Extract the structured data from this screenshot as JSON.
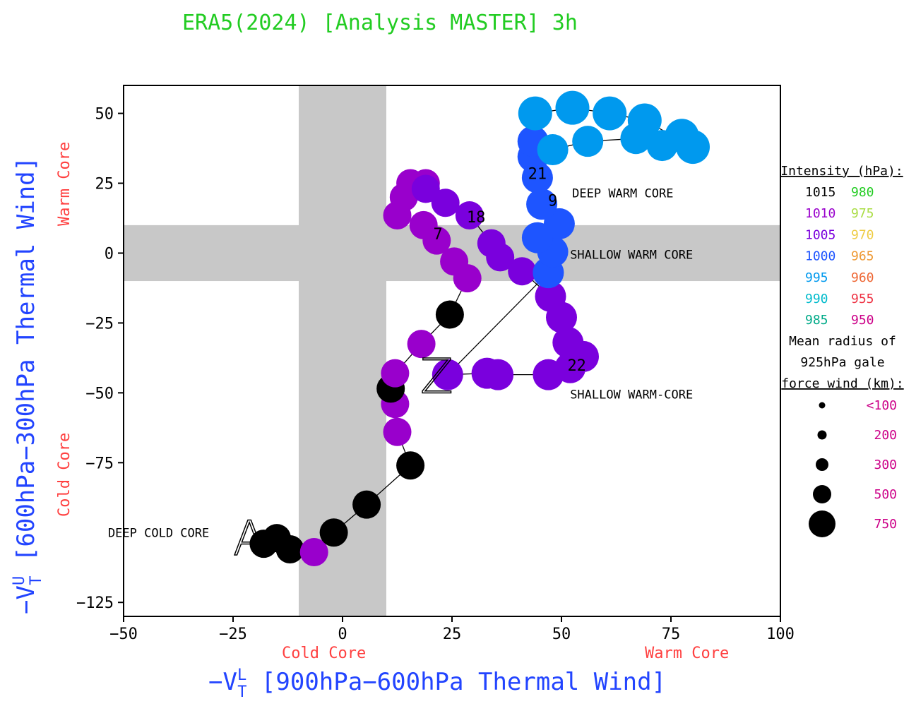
{
  "chart_data": {
    "type": "scatter",
    "title": "ERA5(2024) [Analysis MASTER] 3h",
    "xlabel": "−Vᵀᴸ [900hPa−600hPa Thermal Wind]",
    "ylabel": "−Vᵀᵁ [600hPa−300hPa Thermal Wind]",
    "xlim": [
      -50,
      100
    ],
    "ylim": [
      -130,
      60
    ],
    "xticks": [
      -50,
      -25,
      0,
      25,
      50,
      75,
      100
    ],
    "yticks": [
      50,
      25,
      0,
      -25,
      -50,
      -75,
      -125
    ],
    "xtick_labels": [
      "−50",
      "−25",
      "0",
      "25",
      "50",
      "75",
      "100"
    ],
    "ytick_labels": [
      "50",
      "25",
      "0",
      "−25",
      "−50",
      "−75",
      "−125"
    ],
    "core_labels": {
      "x_cold": "Cold Core",
      "x_warm": "Warm Core",
      "y_cold": "Cold Core",
      "y_warm": "Warm Core"
    },
    "shaded_bands": {
      "x_band": [
        -10,
        10
      ],
      "y_band": [
        -10,
        10
      ],
      "color": "#c8c8c8"
    },
    "region_labels": [
      {
        "text": "DEEP COLD CORE",
        "x": -42,
        "y": -100
      },
      {
        "text": "DEEP WARM CORE",
        "x": 64,
        "y": 21.5
      },
      {
        "text": "SHALLOW WARM CORE",
        "x": 66,
        "y": -0.5
      },
      {
        "text": "SHALLOW WARM-CORE",
        "x": 66,
        "y": -50.5
      }
    ],
    "start_marker": {
      "text": "A",
      "x": -25,
      "y": -108
    },
    "end_marker": {
      "text": "Z",
      "x": 21.5,
      "y": -50
    },
    "point_labels": [
      {
        "text": "7",
        "x": 21.8,
        "y": 7
      },
      {
        "text": "18",
        "x": 30.5,
        "y": 13
      },
      {
        "text": "21",
        "x": 44.5,
        "y": 28.5
      },
      {
        "text": "9",
        "x": 48,
        "y": 19
      },
      {
        "text": "22",
        "x": 53.5,
        "y": -40
      }
    ],
    "series": [
      {
        "x": -18,
        "y": -104,
        "c": "#000000",
        "r": 20
      },
      {
        "x": -15,
        "y": -102,
        "c": "#000000",
        "r": 20
      },
      {
        "x": -12,
        "y": -106,
        "c": "#000000",
        "r": 20
      },
      {
        "x": -6.5,
        "y": -107,
        "c": "#9900cc",
        "r": 20
      },
      {
        "x": -2,
        "y": -100,
        "c": "#000000",
        "r": 20
      },
      {
        "x": 5.5,
        "y": -90,
        "c": "#000000",
        "r": 20
      },
      {
        "x": 15.5,
        "y": -76,
        "c": "#000000",
        "r": 20
      },
      {
        "x": 12.5,
        "y": -64,
        "c": "#9900cc",
        "r": 20
      },
      {
        "x": 12,
        "y": -54,
        "c": "#9900cc",
        "r": 20
      },
      {
        "x": 11,
        "y": -48.5,
        "c": "#000000",
        "r": 20
      },
      {
        "x": 12,
        "y": -43,
        "c": "#9900cc",
        "r": 20
      },
      {
        "x": 18,
        "y": -32.5,
        "c": "#9900cc",
        "r": 20
      },
      {
        "x": 24.5,
        "y": -22,
        "c": "#000000",
        "r": 20
      },
      {
        "x": 28.5,
        "y": -9,
        "c": "#9900cc",
        "r": 20
      },
      {
        "x": 25.5,
        "y": -3,
        "c": "#9900cc",
        "r": 20
      },
      {
        "x": 21.5,
        "y": 4.5,
        "c": "#9900cc",
        "r": 20
      },
      {
        "x": 18.5,
        "y": 10,
        "c": "#9900cc",
        "r": 20
      },
      {
        "x": 12.5,
        "y": 13.5,
        "c": "#9900cc",
        "r": 20
      },
      {
        "x": 14,
        "y": 20,
        "c": "#9900cc",
        "r": 20
      },
      {
        "x": 15.5,
        "y": 25,
        "c": "#9900cc",
        "r": 20
      },
      {
        "x": 19,
        "y": 25,
        "c": "#9900cc",
        "r": 20
      },
      {
        "x": 19,
        "y": 23,
        "c": "#7a00dd",
        "r": 20
      },
      {
        "x": 23.5,
        "y": 18,
        "c": "#7a00dd",
        "r": 20
      },
      {
        "x": 29,
        "y": 13.5,
        "c": "#7a00dd",
        "r": 20
      },
      {
        "x": 34,
        "y": 3.5,
        "c": "#7a00dd",
        "r": 20
      },
      {
        "x": 36,
        "y": -1.5,
        "c": "#7a00dd",
        "r": 20
      },
      {
        "x": 41,
        "y": -6.5,
        "c": "#7a00dd",
        "r": 20
      },
      {
        "x": 47.5,
        "y": -15.5,
        "c": "#7a00dd",
        "r": 22
      },
      {
        "x": 50,
        "y": -23,
        "c": "#7a00dd",
        "r": 22
      },
      {
        "x": 51.5,
        "y": -32,
        "c": "#7a00dd",
        "r": 22
      },
      {
        "x": 55,
        "y": -37,
        "c": "#7a00dd",
        "r": 22
      },
      {
        "x": 52,
        "y": -41,
        "c": "#7a00dd",
        "r": 22
      },
      {
        "x": 47,
        "y": -43.5,
        "c": "#7a00dd",
        "r": 22
      },
      {
        "x": 35.5,
        "y": -43.5,
        "c": "#7a00dd",
        "r": 22
      },
      {
        "x": 33,
        "y": -43,
        "c": "#7a00dd",
        "r": 22
      },
      {
        "x": 24,
        "y": -43.5,
        "c": "#7a00dd",
        "r": 22
      },
      {
        "x": 47,
        "y": -7,
        "c": "#1e55ff",
        "r": 22
      },
      {
        "x": 48,
        "y": 0.5,
        "c": "#1e55ff",
        "r": 22
      },
      {
        "x": 44.5,
        "y": 5.5,
        "c": "#1e55ff",
        "r": 22
      },
      {
        "x": 49.5,
        "y": 10.5,
        "c": "#1e55ff",
        "r": 22
      },
      {
        "x": 45.5,
        "y": 17.5,
        "c": "#1e55ff",
        "r": 22
      },
      {
        "x": 44.5,
        "y": 27,
        "c": "#1e55ff",
        "r": 22
      },
      {
        "x": 43.5,
        "y": 34.5,
        "c": "#1e55ff",
        "r": 22
      },
      {
        "x": 43.5,
        "y": 40,
        "c": "#1e55ff",
        "r": 22
      },
      {
        "x": 48,
        "y": 37,
        "c": "#0099ee",
        "r": 22
      },
      {
        "x": 56,
        "y": 40,
        "c": "#0099ee",
        "r": 22
      },
      {
        "x": 67,
        "y": 41,
        "c": "#0099ee",
        "r": 22
      },
      {
        "x": 73,
        "y": 38.5,
        "c": "#0099ee",
        "r": 22
      },
      {
        "x": 77.5,
        "y": 42,
        "c": "#0099ee",
        "r": 24
      },
      {
        "x": 80,
        "y": 38,
        "c": "#0099ee",
        "r": 24
      },
      {
        "x": 69,
        "y": 47.5,
        "c": "#0099ee",
        "r": 24
      },
      {
        "x": 61,
        "y": 50,
        "c": "#0099ee",
        "r": 24
      },
      {
        "x": 52.5,
        "y": 52,
        "c": "#0099ee",
        "r": 24
      },
      {
        "x": 44,
        "y": 50,
        "c": "#0099ee",
        "r": 24
      }
    ]
  },
  "legend": {
    "intensity_title": "Intensity (hPa):",
    "intensity_rows": [
      {
        "left": "1015",
        "left_color": "#000000",
        "right": "980",
        "right_color": "#22cc22"
      },
      {
        "left": "1010",
        "left_color": "#9900cc",
        "right": "975",
        "right_color": "#aadd44"
      },
      {
        "left": "1005",
        "left_color": "#7a00dd",
        "right": "970",
        "right_color": "#eecc44"
      },
      {
        "left": "1000",
        "left_color": "#1e55ff",
        "right": "965",
        "right_color": "#ee9933"
      },
      {
        "left": "995",
        "left_color": "#0099ee",
        "right": "960",
        "right_color": "#ee6633"
      },
      {
        "left": "990",
        "left_color": "#00bbcc",
        "right": "955",
        "right_color": "#ee3344"
      },
      {
        "left": "985",
        "left_color": "#00aa88",
        "right": "950",
        "right_color": "#cc0088"
      }
    ],
    "radius_title_lines": [
      "Mean radius of",
      "925hPa gale",
      "force wind (km):"
    ],
    "radius_rows": [
      {
        "label": "<100"
      },
      {
        "label": "200"
      },
      {
        "label": "300"
      },
      {
        "label": "500"
      },
      {
        "label": "750"
      }
    ],
    "radius_label_color": "#cc0088"
  }
}
